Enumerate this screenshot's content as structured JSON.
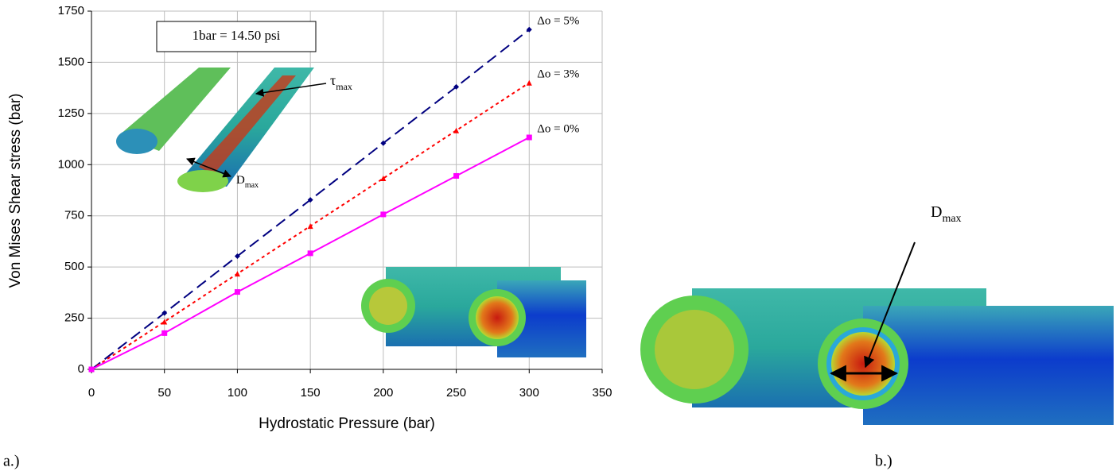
{
  "chart_data": {
    "type": "line",
    "xlabel": "Hydrostatic Pressure (bar)",
    "ylabel": "Von Mises Shear stress (bar)",
    "xlim": [
      0,
      350
    ],
    "xticks": [
      0,
      50,
      100,
      150,
      200,
      250,
      300,
      350
    ],
    "ylim": [
      0,
      1750
    ],
    "yticks": [
      0,
      250,
      500,
      750,
      1000,
      1250,
      1500,
      1750
    ],
    "grid": true,
    "x": [
      0,
      50,
      100,
      150,
      200,
      250,
      300
    ],
    "series": [
      {
        "name": "Δo = 5%",
        "color": "#000080",
        "values": [
          0,
          275,
          553,
          828,
          1105,
          1380,
          1660
        ]
      },
      {
        "name": "Δo = 3%",
        "color": "#ff0000",
        "values": [
          0,
          233,
          467,
          700,
          933,
          1167,
          1400
        ]
      },
      {
        "name": "Δo = 0%",
        "color": "#ff00ff",
        "values": [
          0,
          177,
          378,
          567,
          757,
          945,
          1133
        ]
      }
    ],
    "annotations": {
      "conversion": "1bar = 14.50 psi",
      "tau": {
        "base": "τ",
        "sub": "max"
      },
      "dmax_inset": {
        "base": "D",
        "sub": "max"
      },
      "dmax_right": {
        "base": "D",
        "sub": "max"
      }
    },
    "panel_labels": [
      "a.)",
      "b.)"
    ]
  }
}
